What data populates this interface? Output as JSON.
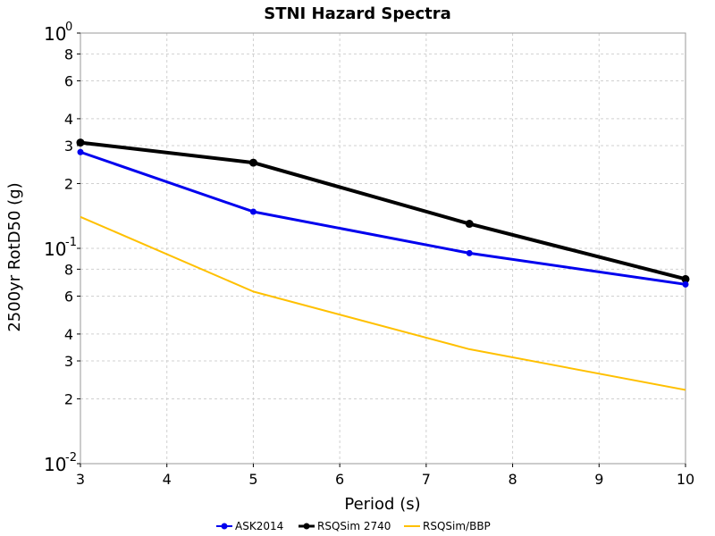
{
  "chart_data": {
    "type": "line",
    "title": "STNI Hazard Spectra",
    "xlabel": "Period (s)",
    "ylabel": "2500yr RotD50 (g)",
    "xlim": [
      3,
      10
    ],
    "ylim": [
      0.01,
      1
    ],
    "yscale": "log",
    "grid": true,
    "legend_position": "bottom",
    "x_ticks": [
      "3",
      "4",
      "5",
      "6",
      "7",
      "8",
      "9",
      "10"
    ],
    "y_ticks": [
      {
        "value": 1,
        "base": "10",
        "exp": "0"
      },
      {
        "value": 0.8,
        "label": "8"
      },
      {
        "value": 0.6,
        "label": "6"
      },
      {
        "value": 0.4,
        "label": "4"
      },
      {
        "value": 0.3,
        "label": "3"
      },
      {
        "value": 0.2,
        "label": "2"
      },
      {
        "value": 0.1,
        "base": "10",
        "exp": "-1"
      },
      {
        "value": 0.08,
        "label": "8"
      },
      {
        "value": 0.06,
        "label": "6"
      },
      {
        "value": 0.04,
        "label": "4"
      },
      {
        "value": 0.03,
        "label": "3"
      },
      {
        "value": 0.02,
        "label": "2"
      },
      {
        "value": 0.01,
        "base": "10",
        "exp": "-2"
      }
    ],
    "series": [
      {
        "name": "ASK2014",
        "color": "#0000ee",
        "x": [
          3,
          5,
          7.5,
          10
        ],
        "y": [
          0.28,
          0.148,
          0.095,
          0.068
        ],
        "markers": true,
        "width": 3
      },
      {
        "name": "RSQSim 2740",
        "color": "#000000",
        "x": [
          3,
          5,
          7.5,
          10
        ],
        "y": [
          0.31,
          0.25,
          0.13,
          0.072
        ],
        "markers": true,
        "width": 4
      },
      {
        "name": "RSQSim/BBP",
        "color": "#ffc000",
        "x": [
          3,
          5,
          7.5,
          10
        ],
        "y": [
          0.14,
          0.063,
          0.034,
          0.022
        ],
        "markers": false,
        "width": 2
      }
    ]
  }
}
